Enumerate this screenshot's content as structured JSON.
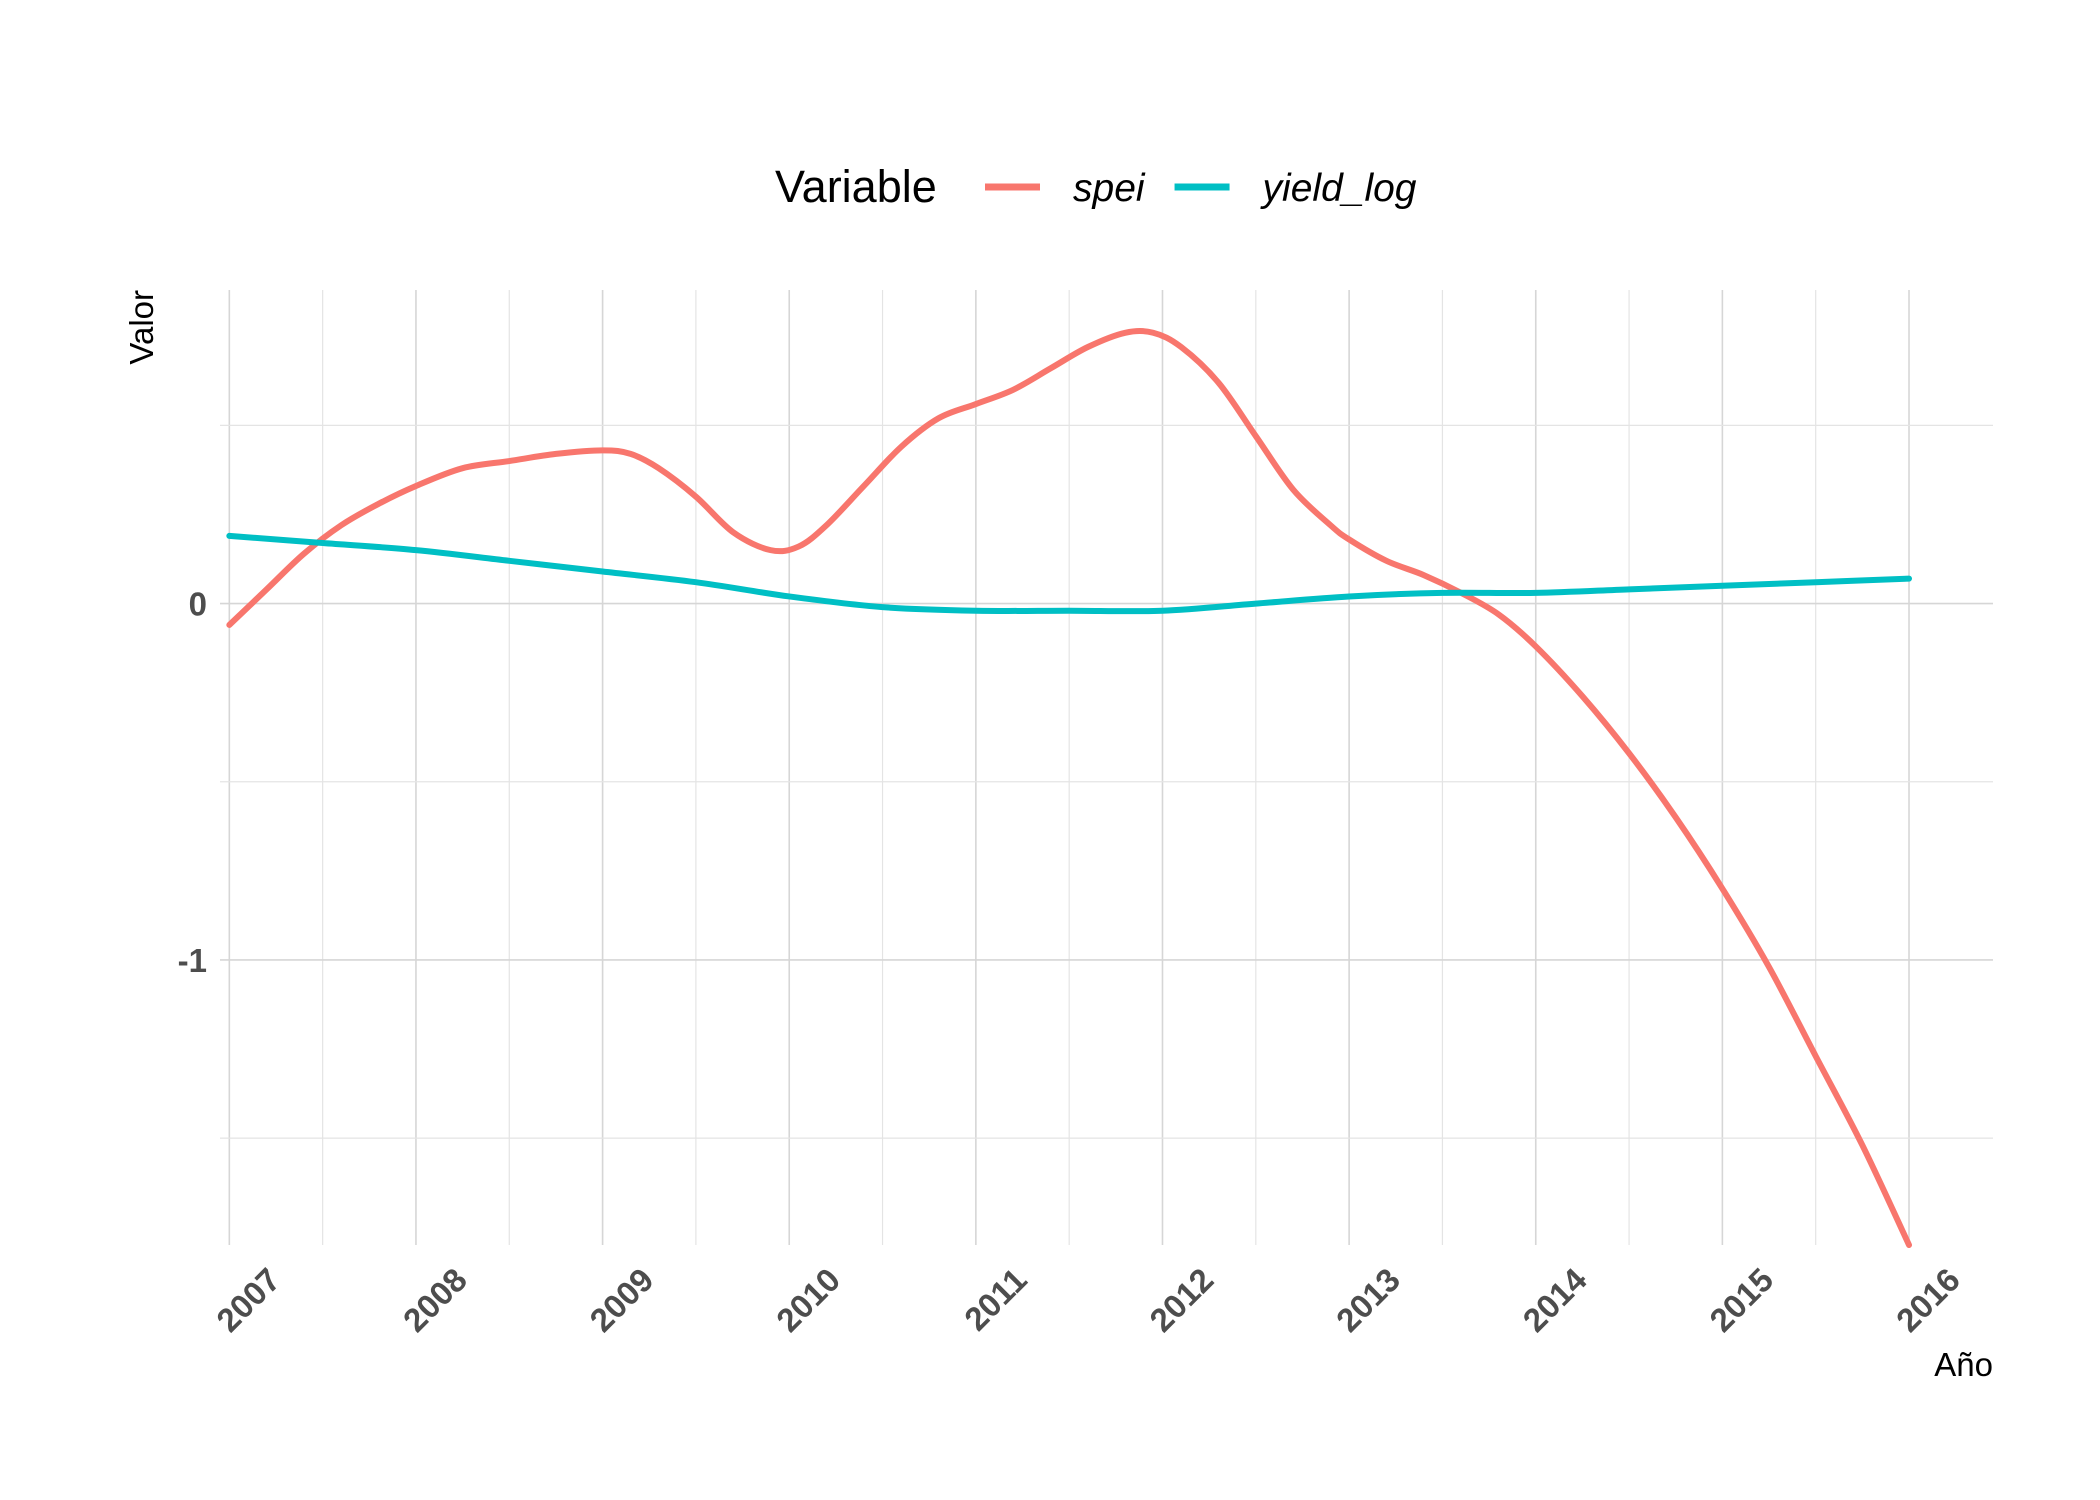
{
  "chart_data": {
    "type": "line",
    "title": "",
    "xlabel": "Año",
    "ylabel": "Valor",
    "legend_title": "Variable",
    "legend_position": "top",
    "grid": true,
    "xlim": [
      2006.95,
      2016.45
    ],
    "ylim": [
      -1.8,
      0.88
    ],
    "x_ticks": [
      2007,
      2008,
      2009,
      2010,
      2011,
      2012,
      2013,
      2014,
      2015,
      2016
    ],
    "y_ticks": [
      0,
      -1
    ],
    "y_minor": [
      0.5,
      -0.5,
      -1.5
    ],
    "series": [
      {
        "name": "spei",
        "color": "#F8766D",
        "x": [
          2007.0,
          2007.2,
          2007.4,
          2007.6,
          2007.8,
          2008.0,
          2008.25,
          2008.5,
          2008.75,
          2009.0,
          2009.15,
          2009.3,
          2009.5,
          2009.7,
          2009.9,
          2010.05,
          2010.2,
          2010.4,
          2010.6,
          2010.8,
          2011.0,
          2011.2,
          2011.4,
          2011.6,
          2011.8,
          2011.95,
          2012.1,
          2012.3,
          2012.5,
          2012.7,
          2012.9,
          2013.0,
          2013.2,
          2013.4,
          2013.6,
          2013.8,
          2014.0,
          2014.25,
          2014.5,
          2014.75,
          2015.0,
          2015.25,
          2015.5,
          2015.75,
          2016.0
        ],
        "values": [
          -0.06,
          0.04,
          0.14,
          0.22,
          0.28,
          0.33,
          0.38,
          0.4,
          0.42,
          0.43,
          0.42,
          0.38,
          0.3,
          0.2,
          0.15,
          0.16,
          0.22,
          0.33,
          0.44,
          0.52,
          0.56,
          0.6,
          0.66,
          0.72,
          0.76,
          0.76,
          0.72,
          0.62,
          0.47,
          0.32,
          0.22,
          0.18,
          0.12,
          0.08,
          0.03,
          -0.03,
          -0.12,
          -0.26,
          -0.42,
          -0.6,
          -0.8,
          -1.02,
          -1.27,
          -1.52,
          -1.8
        ]
      },
      {
        "name": "yield_log",
        "color": "#00BFC4",
        "x": [
          2007.0,
          2007.5,
          2008.0,
          2008.5,
          2009.0,
          2009.5,
          2010.0,
          2010.5,
          2011.0,
          2011.5,
          2012.0,
          2012.5,
          2013.0,
          2013.5,
          2014.0,
          2014.5,
          2015.0,
          2015.5,
          2016.0
        ],
        "values": [
          0.19,
          0.17,
          0.15,
          0.12,
          0.09,
          0.06,
          0.02,
          -0.01,
          -0.02,
          -0.02,
          -0.02,
          0.0,
          0.02,
          0.03,
          0.03,
          0.04,
          0.05,
          0.06,
          0.07
        ]
      }
    ]
  }
}
